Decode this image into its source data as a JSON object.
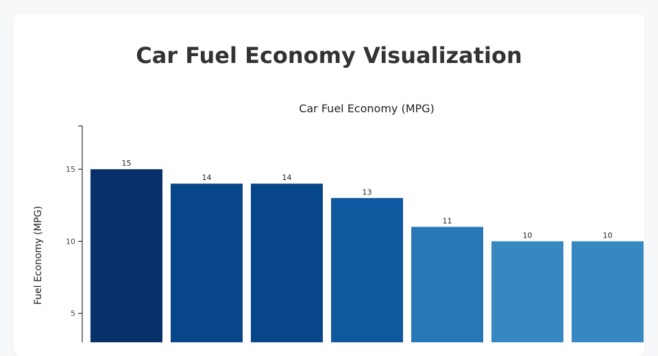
{
  "page": {
    "title": "Car Fuel Economy Visualization"
  },
  "chart_data": {
    "type": "bar",
    "title": "Car Fuel Economy (MPG)",
    "xlabel": "",
    "ylabel": "Fuel Economy (MPG)",
    "ylim": [
      0,
      18
    ],
    "yticks": [
      5,
      10,
      15
    ],
    "grid": false,
    "categories": [
      "",
      "",
      "",
      "",
      "",
      "",
      ""
    ],
    "values": [
      15,
      14,
      14,
      13,
      11,
      10,
      10
    ],
    "colors": [
      "#08306b",
      "#08468a",
      "#08468a",
      "#0f579e",
      "#2878b8",
      "#3787c0",
      "#3787c0"
    ]
  }
}
